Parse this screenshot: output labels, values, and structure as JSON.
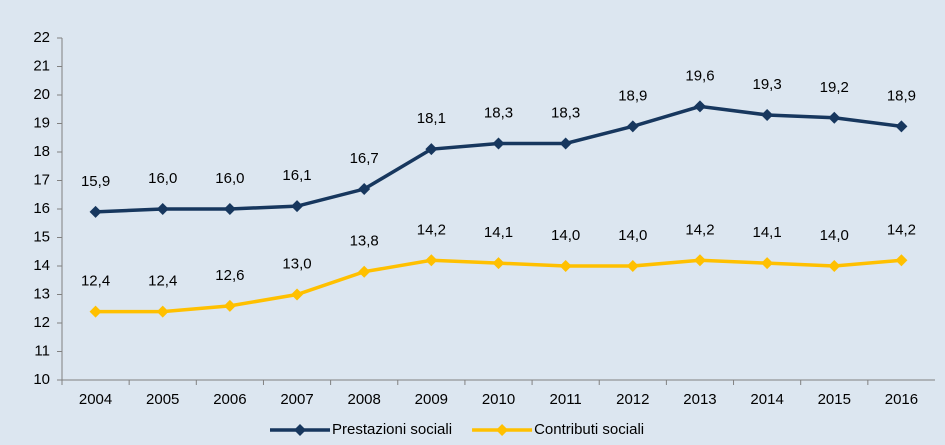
{
  "chart_data": {
    "type": "line",
    "categories": [
      "2004",
      "2005",
      "2006",
      "2007",
      "2008",
      "2009",
      "2010",
      "2011",
      "2012",
      "2013",
      "2014",
      "2015",
      "2016"
    ],
    "series": [
      {
        "name": "Prestazioni sociali",
        "color": "#17375e",
        "values": [
          15.9,
          16.0,
          16.0,
          16.1,
          16.7,
          18.1,
          18.3,
          18.3,
          18.9,
          19.6,
          19.3,
          19.2,
          18.9
        ],
        "value_labels": [
          "15,9",
          "16,0",
          "16,0",
          "16,1",
          "16,7",
          "18,1",
          "18,3",
          "18,3",
          "18,9",
          "19,6",
          "19,3",
          "19,2",
          "18,9"
        ]
      },
      {
        "name": "Contributi sociali",
        "color": "#ffc000",
        "values": [
          12.4,
          12.4,
          12.6,
          13.0,
          13.8,
          14.2,
          14.1,
          14.0,
          14.0,
          14.2,
          14.1,
          14.0,
          14.2
        ],
        "value_labels": [
          "12,4",
          "12,4",
          "12,6",
          "13,0",
          "13,8",
          "14,2",
          "14,1",
          "14,0",
          "14,0",
          "14,2",
          "14,1",
          "14,0",
          "14,2"
        ]
      }
    ],
    "ylim": [
      10,
      22
    ],
    "yticks": [
      10,
      11,
      12,
      13,
      14,
      15,
      16,
      17,
      18,
      19,
      20,
      21,
      22
    ],
    "grid": false,
    "legend": "bottom"
  }
}
